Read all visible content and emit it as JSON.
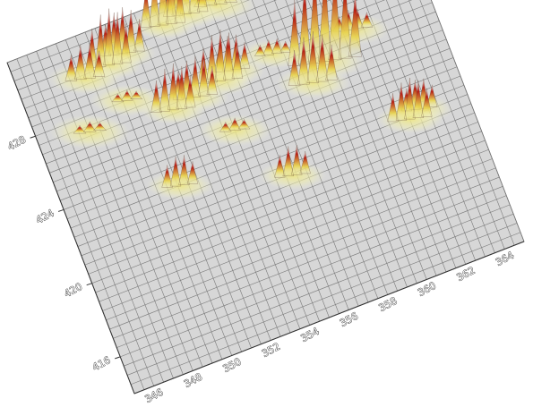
{
  "chart_data": {
    "type": "surface3d",
    "title": "",
    "xlabel": "",
    "ylabel": "",
    "zlabel": "",
    "x_ticks": [
      "346",
      "348",
      "350",
      "352",
      "354",
      "356",
      "358",
      "360",
      "362",
      "364"
    ],
    "y_ticks": [
      "416",
      "420",
      "424",
      "428"
    ],
    "x_range": [
      345,
      365
    ],
    "y_range": [
      414,
      432
    ],
    "grid": true,
    "colors": {
      "plane": "#d7d7d7",
      "grid": "#7a7a7a",
      "low": "#f2f0a8",
      "mid": "#e8d24a",
      "high": "#b81e14",
      "peak": "#ffffff"
    },
    "peaks": [
      {
        "x": 348.2,
        "y": 429.8,
        "height": 0.35,
        "spread": 0.6
      },
      {
        "x": 349.5,
        "y": 430.0,
        "height": 0.55,
        "spread": 0.5
      },
      {
        "x": 350.3,
        "y": 430.3,
        "height": 0.45,
        "spread": 0.5
      },
      {
        "x": 352.6,
        "y": 430.9,
        "height": 0.6,
        "spread": 0.5
      },
      {
        "x": 353.8,
        "y": 431.0,
        "height": 0.45,
        "spread": 0.5
      },
      {
        "x": 355.3,
        "y": 430.9,
        "height": 0.2,
        "spread": 0.7
      },
      {
        "x": 347.5,
        "y": 427.2,
        "height": 0.1,
        "spread": 0.7
      },
      {
        "x": 349.7,
        "y": 428.0,
        "height": 0.1,
        "spread": 0.6
      },
      {
        "x": 351.6,
        "y": 426.7,
        "height": 0.45,
        "spread": 0.5
      },
      {
        "x": 352.8,
        "y": 426.9,
        "height": 0.4,
        "spread": 0.5
      },
      {
        "x": 354.2,
        "y": 427.2,
        "height": 0.5,
        "spread": 0.5
      },
      {
        "x": 354.9,
        "y": 427.5,
        "height": 0.35,
        "spread": 0.5
      },
      {
        "x": 357.0,
        "y": 427.5,
        "height": 0.15,
        "spread": 0.5
      },
      {
        "x": 354.0,
        "y": 424.6,
        "height": 0.12,
        "spread": 0.6
      },
      {
        "x": 359.2,
        "y": 426.2,
        "height": 1.0,
        "spread": 0.7
      },
      {
        "x": 358.3,
        "y": 425.4,
        "height": 0.5,
        "spread": 0.6
      },
      {
        "x": 361.0,
        "y": 427.2,
        "height": 0.2,
        "spread": 0.6
      },
      {
        "x": 350.6,
        "y": 423.0,
        "height": 0.3,
        "spread": 0.5
      },
      {
        "x": 355.8,
        "y": 421.4,
        "height": 0.3,
        "spread": 0.5
      },
      {
        "x": 362.0,
        "y": 421.9,
        "height": 0.4,
        "spread": 0.5
      },
      {
        "x": 362.6,
        "y": 422.2,
        "height": 0.3,
        "spread": 0.5
      }
    ]
  }
}
